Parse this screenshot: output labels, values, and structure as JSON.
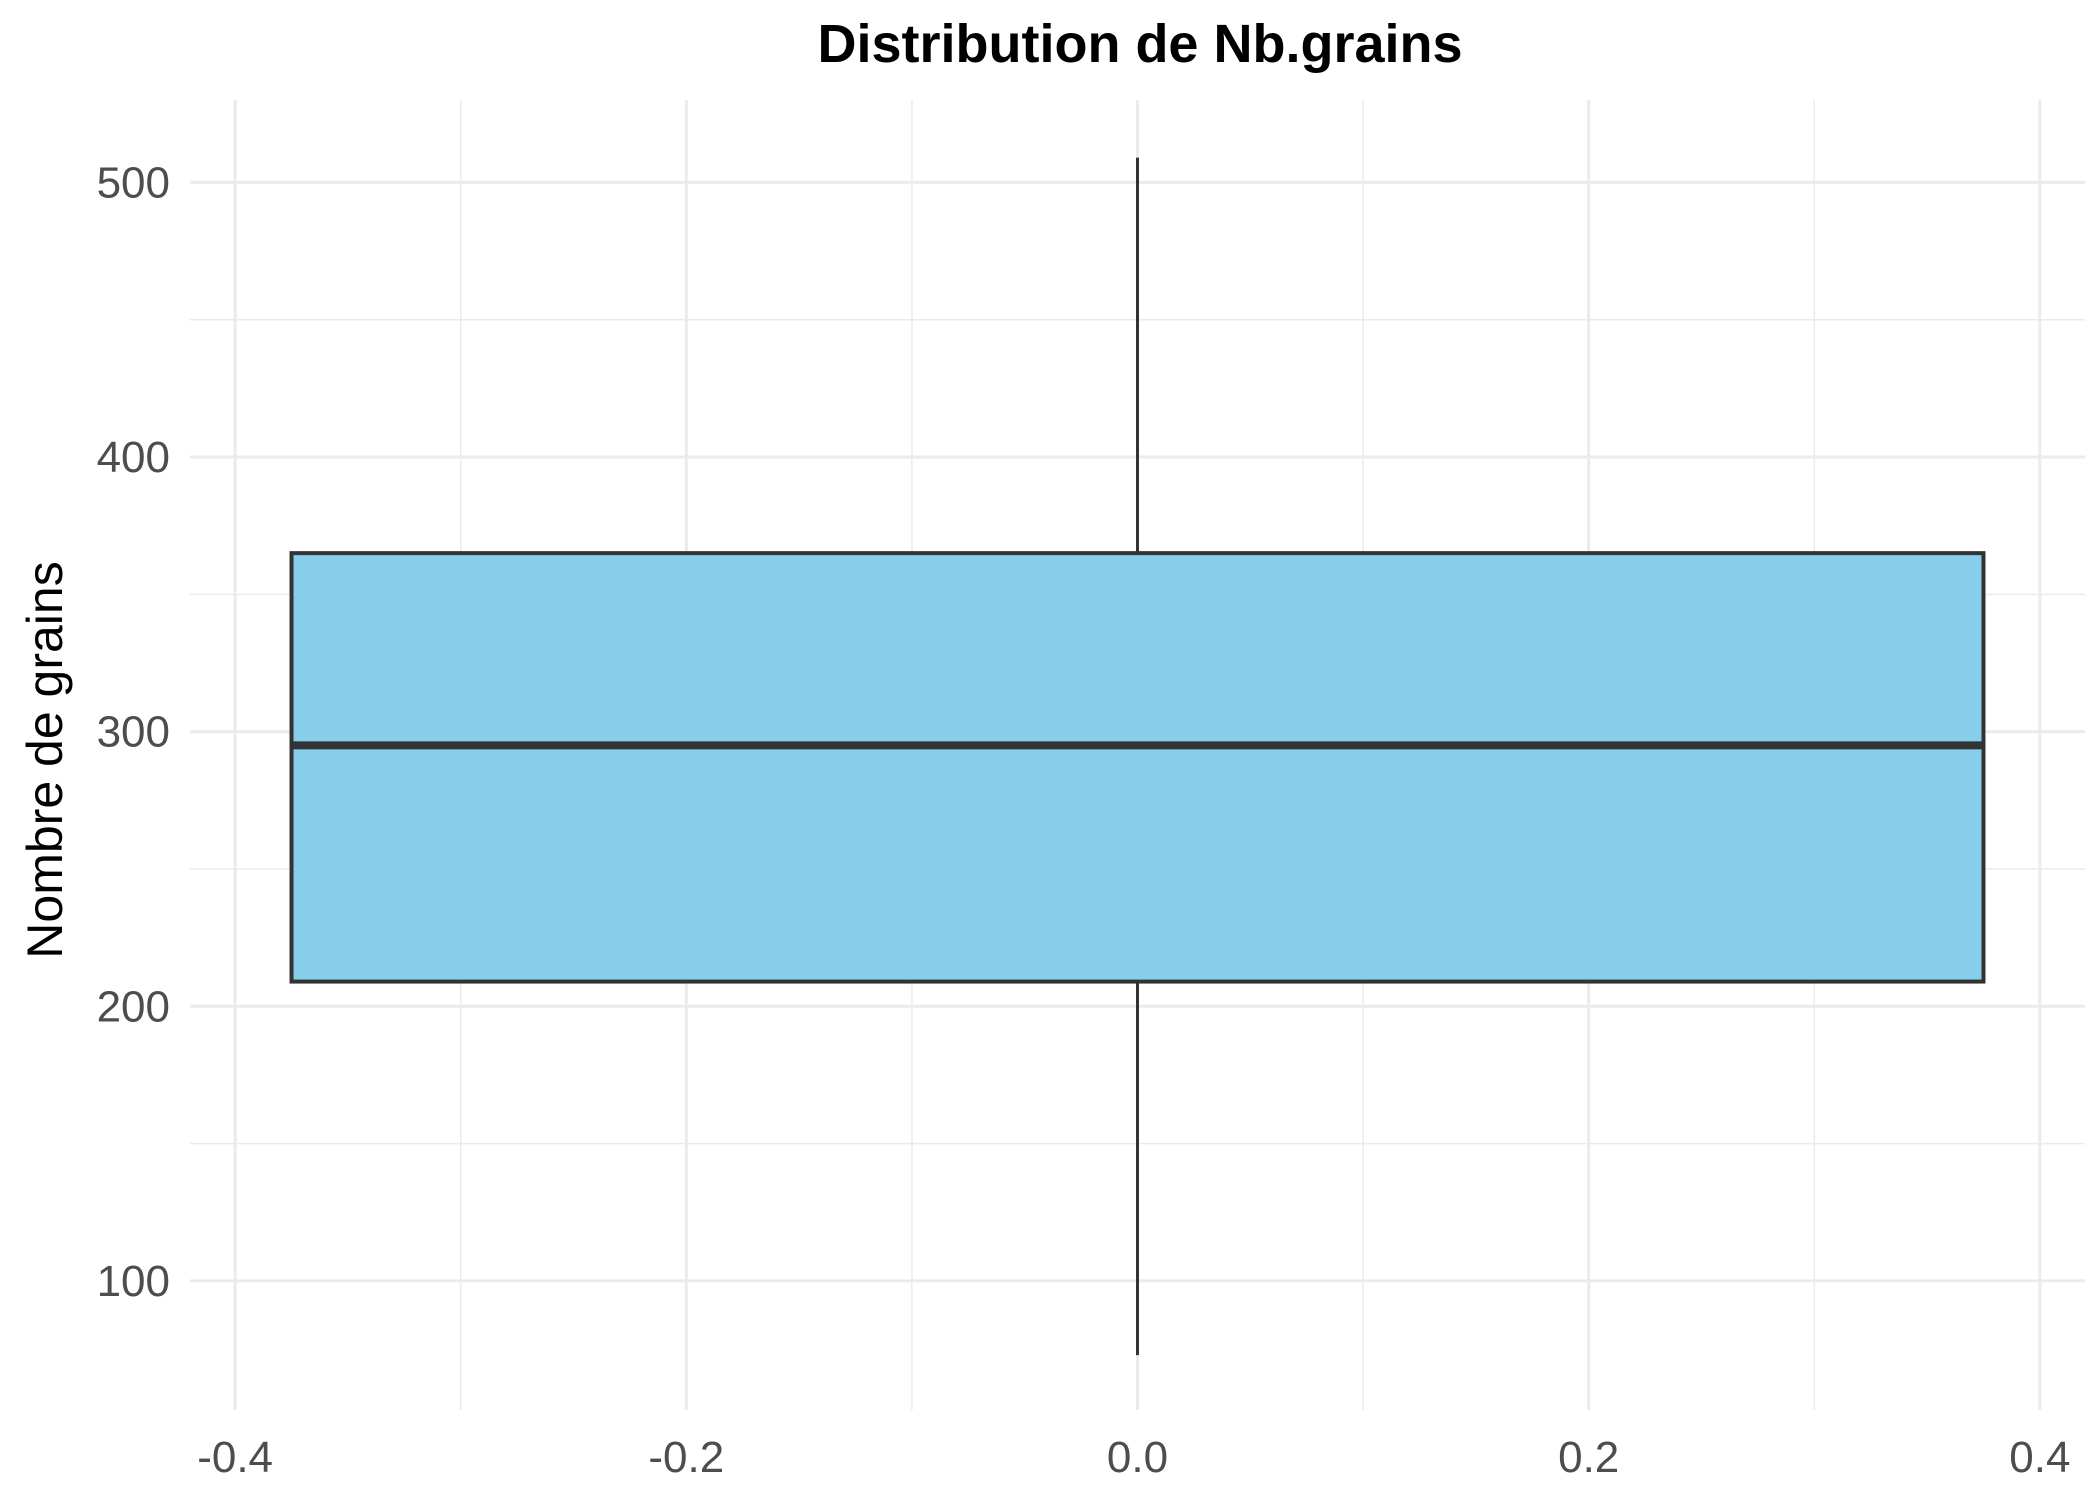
{
  "chart_data": {
    "type": "box",
    "title": "Distribution de Nb.grains",
    "xlabel": "",
    "ylabel": "Nombre de grains",
    "xlim": [
      -0.42,
      0.42
    ],
    "ylim": [
      53,
      530
    ],
    "x_ticks": [
      -0.4,
      -0.2,
      0.0,
      0.2,
      0.4
    ],
    "x_tick_labels": [
      "-0.4",
      "-0.2",
      "0.0",
      "0.2",
      "0.4"
    ],
    "y_ticks": [
      100,
      200,
      300,
      400,
      500
    ],
    "y_tick_labels": [
      "100",
      "200",
      "300",
      "400",
      "500"
    ],
    "grid": true,
    "box": {
      "x_left": -0.375,
      "x_right": 0.375,
      "x_center": 0.0,
      "whisker_low": 73,
      "q1": 209,
      "median": 295,
      "q3": 365,
      "whisker_high": 509
    },
    "colors": {
      "fill": "#87ceeb",
      "outline": "#333333",
      "grid": "#ebebeb"
    }
  }
}
